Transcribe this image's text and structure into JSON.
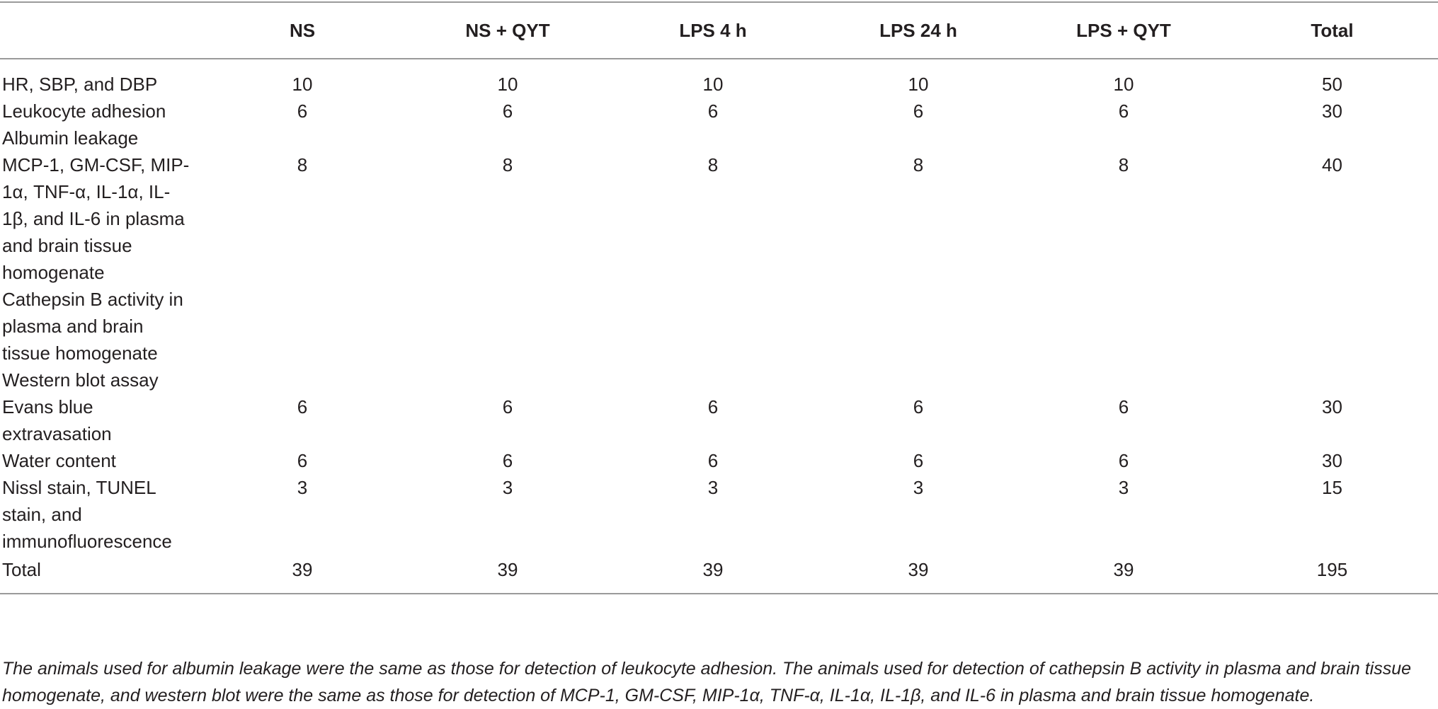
{
  "table": {
    "headers": [
      "",
      "NS",
      "NS + QYT",
      "LPS 4 h",
      "LPS 24 h",
      "LPS + QYT",
      "Total"
    ],
    "rows": [
      {
        "label": "HR, SBP, and DBP",
        "values": [
          "10",
          "10",
          "10",
          "10",
          "10",
          "50"
        ]
      },
      {
        "label": "Leukocyte adhesion",
        "values": [
          "6",
          "6",
          "6",
          "6",
          "6",
          "30"
        ]
      },
      {
        "label": "Albumin leakage",
        "values": [
          "",
          "",
          "",
          "",
          "",
          ""
        ]
      },
      {
        "label": "MCP-1, GM-CSF, MIP-1α, TNF-α, IL-1α, IL-1β, and IL-6 in plasma and brain tissue homogenate",
        "values": [
          "8",
          "8",
          "8",
          "8",
          "8",
          "40"
        ]
      },
      {
        "label": "Cathepsin B activity in plasma and brain tissue homogenate",
        "values": [
          "",
          "",
          "",
          "",
          "",
          ""
        ]
      },
      {
        "label": "Western blot assay",
        "values": [
          "",
          "",
          "",
          "",
          "",
          ""
        ]
      },
      {
        "label": "Evans blue extravasation",
        "values": [
          "6",
          "6",
          "6",
          "6",
          "6",
          "30"
        ]
      },
      {
        "label": "Water content",
        "values": [
          "6",
          "6",
          "6",
          "6",
          "6",
          "30"
        ]
      },
      {
        "label": "Nissl stain, TUNEL stain, and immunofluorescence",
        "values": [
          "3",
          "3",
          "3",
          "3",
          "3",
          "15"
        ]
      },
      {
        "label": "Total",
        "values": [
          "39",
          "39",
          "39",
          "39",
          "39",
          "195"
        ]
      }
    ]
  },
  "footnote": "The animals used for albumin leakage were the same as those for detection of leukocyte adhesion. The animals used for detection of cathepsin B activity in plasma and brain tissue homogenate, and western blot were the same as those for detection of MCP-1, GM-CSF, MIP-1α, TNF-α, IL-1α, IL-1β, and IL-6 in plasma and brain tissue homogenate."
}
